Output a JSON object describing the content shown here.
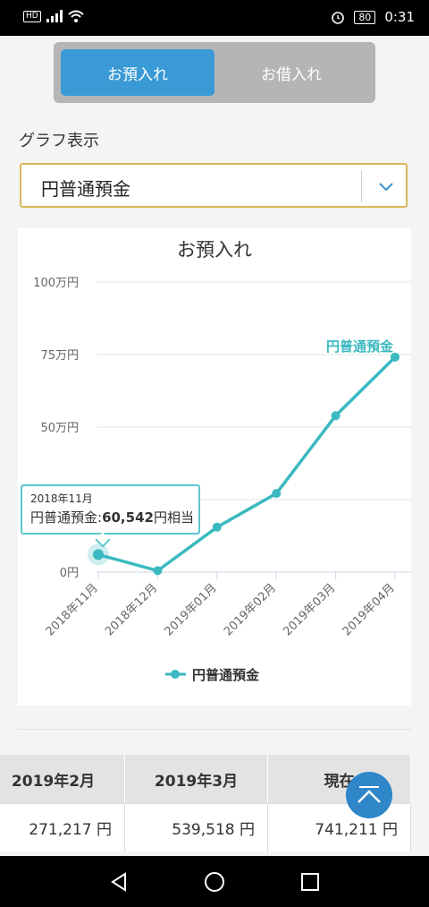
{
  "status_bar": {
    "network_badge": "HD",
    "battery": "80",
    "time": "0:31"
  },
  "tabs": {
    "deposit": "お預入れ",
    "loan": "お借入れ"
  },
  "graph_label": "グラフ表示",
  "select": {
    "value": "円普通預金"
  },
  "chart_data": {
    "type": "line",
    "title": "お預入れ",
    "categories": [
      "2018年11月",
      "2018年12月",
      "2019年01月",
      "2019年02月",
      "2019年03月",
      "2019年04月"
    ],
    "series": [
      {
        "name": "円普通預金",
        "values": [
          60542,
          5000,
          155000,
          271217,
          539518,
          741211
        ],
        "color": "#3bb9c0"
      }
    ],
    "y_ticks": [
      {
        "value": 0,
        "label": "0円"
      },
      {
        "value": 250000,
        "label": ""
      },
      {
        "value": 500000,
        "label": "50万円"
      },
      {
        "value": 750000,
        "label": "75万円"
      },
      {
        "value": 1000000,
        "label": "100万円"
      }
    ],
    "ylim": [
      0,
      1000000
    ],
    "end_label": "円普通預金",
    "legend": "円普通預金",
    "legend_position": "bottom",
    "tooltip": {
      "date": "2018年11月",
      "series": "円普通預金:",
      "value": "60,542",
      "suffix": "円相当"
    }
  },
  "table": {
    "headers": [
      "2019年2月",
      "2019年3月",
      "現在"
    ],
    "values": [
      "271,217 円",
      "539,518 円",
      "741,211 円"
    ]
  }
}
